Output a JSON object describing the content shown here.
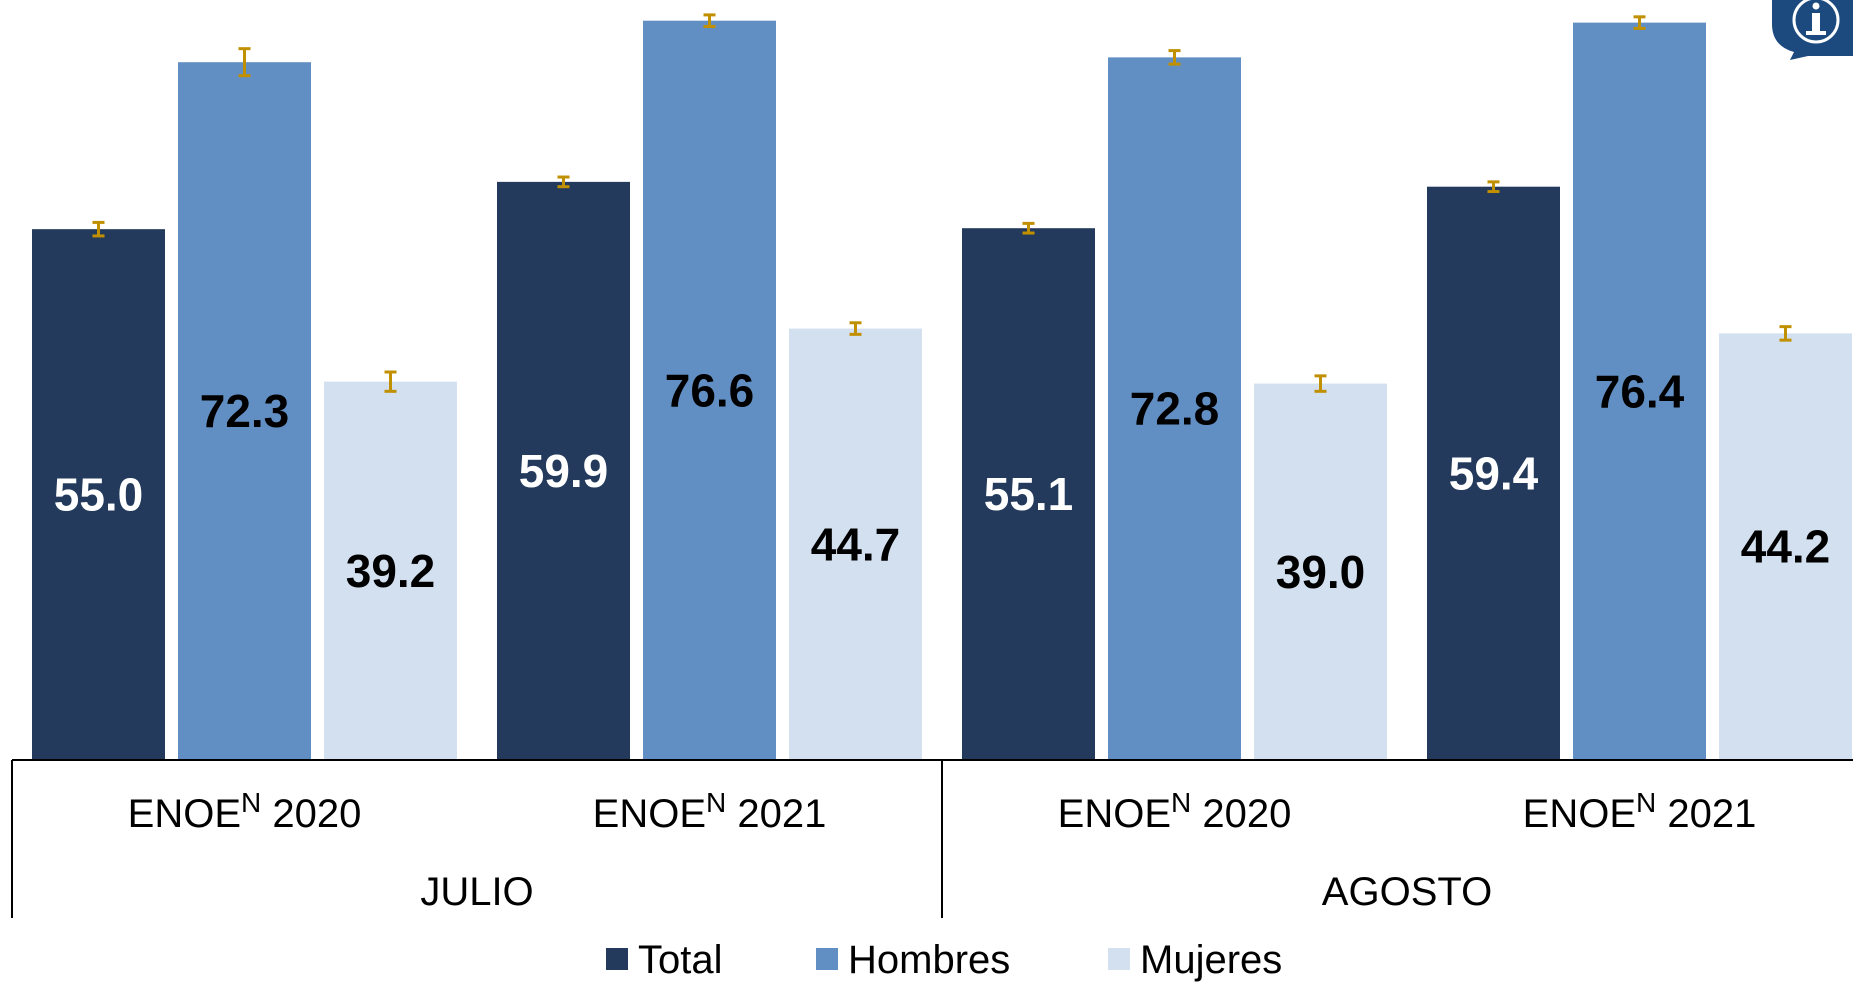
{
  "colors": {
    "total": "#233a5c",
    "hombres": "#628fc3",
    "mujeres": "#d3e0ef",
    "error_bar": "#c09000",
    "info_icon": "#1d4a7e"
  },
  "icons": {
    "corner": "info-icon"
  },
  "chart_data": {
    "type": "bar",
    "groups": [
      {
        "label": "JULIO",
        "categories": [
          {
            "name": "ENOE",
            "superscript": "N",
            "year": "2020"
          },
          {
            "name": "ENOE",
            "superscript": "N",
            "year": "2021"
          }
        ]
      },
      {
        "label": "AGOSTO",
        "categories": [
          {
            "name": "ENOE",
            "superscript": "N",
            "year": "2020"
          },
          {
            "name": "ENOE",
            "superscript": "N",
            "year": "2021"
          }
        ]
      }
    ],
    "series": [
      {
        "name": "Total",
        "color": "#233a5c",
        "label_color": "#ffffff",
        "values": [
          55.0,
          59.9,
          55.1,
          59.4
        ],
        "labels": [
          "55.0",
          "59.9",
          "55.1",
          "59.4"
        ],
        "error": [
          0.7,
          0.5,
          0.5,
          0.5
        ]
      },
      {
        "name": "Hombres",
        "color": "#628fc3",
        "label_color": "#000000",
        "values": [
          72.3,
          76.6,
          72.8,
          76.4
        ],
        "labels": [
          "72.3",
          "76.6",
          "72.8",
          "76.4"
        ],
        "error": [
          1.4,
          0.6,
          0.7,
          0.6
        ]
      },
      {
        "name": "Mujeres",
        "color": "#d3e0ef",
        "label_color": "#000000",
        "values": [
          39.2,
          44.7,
          39.0,
          44.2
        ],
        "labels": [
          "39.2",
          "44.7",
          "39.0",
          "44.2"
        ],
        "error": [
          1.0,
          0.6,
          0.8,
          0.7
        ]
      }
    ],
    "ylim": [
      0,
      77.5
    ],
    "grid": false,
    "legend": {
      "position": "bottom"
    }
  }
}
